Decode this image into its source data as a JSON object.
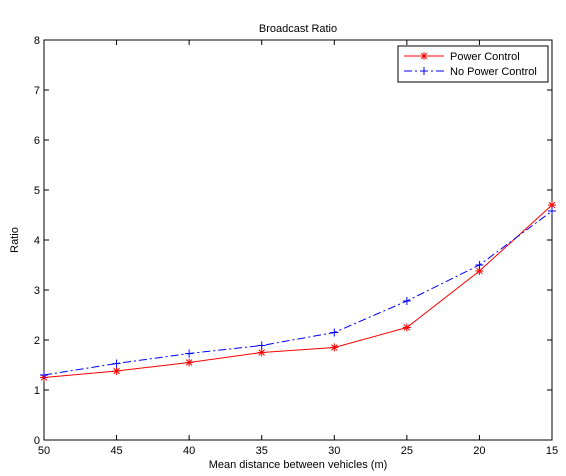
{
  "chart_data": {
    "type": "line",
    "title": "Broadcast Ratio",
    "xlabel": "Mean distance between vehicles (m)",
    "ylabel": "Ratio",
    "x": [
      50,
      45,
      40,
      35,
      30,
      25,
      20,
      15
    ],
    "x_tick_labels": [
      "50",
      "45",
      "40",
      "35",
      "30",
      "25",
      "20",
      "15"
    ],
    "xlim": [
      50,
      15
    ],
    "x_reversed": true,
    "ylim": [
      0,
      8
    ],
    "y_ticks": [
      0,
      1,
      2,
      3,
      4,
      5,
      6,
      7,
      8
    ],
    "y_tick_labels": [
      "0",
      "1",
      "2",
      "3",
      "4",
      "5",
      "6",
      "7",
      "8"
    ],
    "grid": false,
    "legend_position": "top-right",
    "series": [
      {
        "name": "Power Control",
        "color": "#ff0000",
        "line_style": "solid",
        "marker": "asterisk",
        "values": [
          1.25,
          1.38,
          1.55,
          1.75,
          1.85,
          2.25,
          3.38,
          4.7
        ]
      },
      {
        "name": "No Power Control",
        "color": "#0000ff",
        "line_style": "dash-dot",
        "marker": "plus",
        "values": [
          1.3,
          1.53,
          1.73,
          1.89,
          2.15,
          2.78,
          3.5,
          4.58
        ]
      }
    ]
  }
}
